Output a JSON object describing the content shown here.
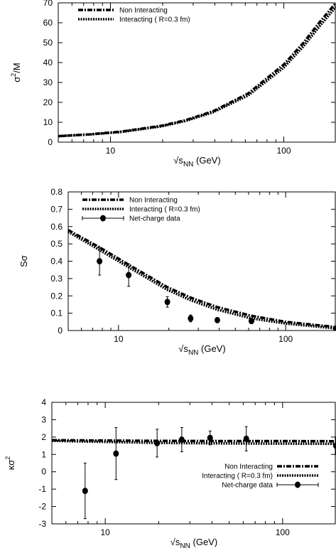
{
  "chart_data": [
    {
      "type": "line",
      "xscale": "log",
      "xlim": [
        5,
        200
      ],
      "ylim": [
        0,
        70
      ],
      "xlabel_main": "√s",
      "xlabel_sub": "NN",
      "xlabel_unit": " (GeV)",
      "ylabel_main": "σ",
      "ylabel_sup": "2",
      "ylabel_rest": "/M",
      "xticks": [
        10,
        100
      ],
      "xtick_labels": [
        "10",
        "100"
      ],
      "yticks": [
        0,
        10,
        20,
        30,
        40,
        50,
        60,
        70
      ],
      "ytick_labels": [
        "0",
        "10",
        "20",
        "30",
        "40",
        "50",
        "60",
        "70"
      ],
      "legend_position": "top-left",
      "series": [
        {
          "name": "Non Interacting",
          "style": "dashdot",
          "x": [
            5,
            7.7,
            11.5,
            19.6,
            27,
            39,
            62.4,
            100,
            130,
            160,
            200
          ],
          "y": [
            3,
            4,
            5.3,
            8.2,
            11,
            15.5,
            24.5,
            39,
            50,
            60,
            70
          ]
        },
        {
          "name": "Interacting ( R=0.3 fm)",
          "style": "dotted",
          "x": [
            5,
            7.7,
            11.5,
            19.6,
            27,
            39,
            62.4,
            100,
            130,
            160,
            200
          ],
          "y": [
            3,
            3.9,
            5.1,
            7.9,
            10.6,
            15,
            23.5,
            37.5,
            48.2,
            58,
            68
          ]
        }
      ]
    },
    {
      "type": "line",
      "xscale": "log",
      "xlim": [
        5,
        200
      ],
      "ylim": [
        0,
        0.8
      ],
      "xlabel_main": "√s",
      "xlabel_sub": "NN",
      "xlabel_unit": " (GeV)",
      "ylabel_main": "Sσ",
      "ylabel_sup": "",
      "ylabel_rest": "",
      "xticks": [
        10,
        100
      ],
      "xtick_labels": [
        "10",
        "100"
      ],
      "yticks": [
        0,
        0.1,
        0.2,
        0.3,
        0.4,
        0.5,
        0.6,
        0.7,
        0.8
      ],
      "ytick_labels": [
        "0",
        "0.1",
        "0.2",
        "0.3",
        "0.4",
        "0.5",
        "0.6",
        "0.7",
        "0.8"
      ],
      "legend_position": "top-left",
      "series": [
        {
          "name": "Non Interacting",
          "style": "dashdot",
          "x": [
            5,
            7.7,
            11.5,
            19.6,
            27,
            39,
            62.4,
            100,
            200
          ],
          "y": [
            0.58,
            0.48,
            0.38,
            0.25,
            0.19,
            0.135,
            0.085,
            0.05,
            0.02
          ]
        },
        {
          "name": "Interacting ( R=0.3 fm)",
          "style": "dotted",
          "x": [
            5,
            7.7,
            11.5,
            19.6,
            27,
            39,
            62.4,
            100,
            200
          ],
          "y": [
            0.57,
            0.465,
            0.365,
            0.235,
            0.175,
            0.12,
            0.07,
            0.04,
            0.012
          ]
        },
        {
          "name": "Net-charge data",
          "style": "points",
          "x": [
            7.7,
            11.5,
            19.6,
            27,
            39,
            62.4,
            200
          ],
          "y": [
            0.4,
            0.32,
            0.165,
            0.07,
            0.06,
            0.055,
            0.01
          ],
          "err": [
            0.08,
            0.065,
            0.03,
            0.02,
            0.01,
            0.015,
            0.01
          ]
        }
      ]
    },
    {
      "type": "line",
      "xscale": "log",
      "xlim": [
        5,
        200
      ],
      "ylim": [
        -3,
        4
      ],
      "xlabel_main": "√s",
      "xlabel_sub": "NN",
      "xlabel_unit": " (GeV)",
      "ylabel_main": "κσ",
      "ylabel_sup": "2",
      "ylabel_rest": "",
      "xticks": [
        10,
        100
      ],
      "xtick_labels": [
        "10",
        "100"
      ],
      "yticks": [
        -3,
        -2,
        -1,
        0,
        1,
        2,
        3,
        4
      ],
      "ytick_labels": [
        "-3",
        "-2",
        "-1",
        "0",
        "1",
        "2",
        "3",
        "4"
      ],
      "legend_position": "lower-right",
      "series": [
        {
          "name": "Non Interacting",
          "style": "dashdot",
          "x": [
            5,
            10,
            20,
            50,
            100,
            200
          ],
          "y": [
            1.82,
            1.8,
            1.78,
            1.77,
            1.77,
            1.76
          ]
        },
        {
          "name": "Interacting ( R=0.3 fm)",
          "style": "dotted",
          "x": [
            5,
            10,
            20,
            50,
            100,
            200
          ],
          "y": [
            1.78,
            1.72,
            1.66,
            1.63,
            1.62,
            1.61
          ]
        },
        {
          "name": "Net-charge data",
          "style": "points",
          "x": [
            7.7,
            11.5,
            19.6,
            27,
            39,
            62.4,
            200
          ],
          "y": [
            -1.1,
            1.05,
            1.65,
            1.85,
            1.95,
            1.9,
            1.5
          ],
          "err": [
            1.6,
            1.5,
            0.8,
            0.7,
            0.4,
            0.7,
            0.5
          ]
        }
      ]
    }
  ]
}
